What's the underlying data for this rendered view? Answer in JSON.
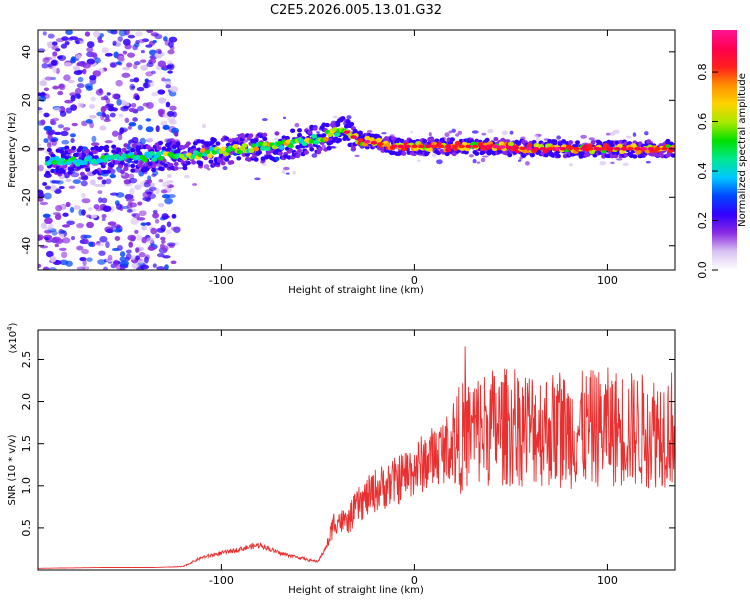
{
  "title": "C2E5.2026.005.13.01.G32",
  "chart_data": [
    {
      "type": "heatmap",
      "name": "spectrogram",
      "xlabel": "Height of straight line (km)",
      "ylabel": "Frequency (Hz)",
      "xlim": [
        -195,
        135
      ],
      "ylim": [
        -50,
        49
      ],
      "xticks": [
        -100,
        0,
        100
      ],
      "xtick_labels": [
        "-100",
        "0",
        "100"
      ],
      "yticks": [
        -40,
        -20,
        0,
        20,
        40
      ],
      "ytick_labels": [
        "-40",
        "-20",
        "0",
        "20",
        "40"
      ],
      "ridge": {
        "x": [
          -190,
          -170,
          -150,
          -130,
          -110,
          -90,
          -70,
          -50,
          -40,
          -37,
          -30,
          -25,
          -10,
          0,
          10,
          20,
          40,
          60,
          80,
          100,
          120,
          135
        ],
        "y": [
          -5,
          -5,
          -4,
          -3,
          -2,
          0,
          1,
          4,
          7,
          8,
          4,
          3,
          1,
          1,
          1,
          1,
          1,
          0,
          0,
          0,
          0,
          0
        ]
      },
      "colorbar": {
        "label": "Normalized spectral amplitude",
        "range": [
          0,
          0.97
        ],
        "ticks": [
          0.0,
          0.2,
          0.4,
          0.6,
          0.8
        ],
        "tick_labels": [
          "0.0",
          "0.2",
          "0.4",
          "0.6",
          "0.8"
        ],
        "colors": [
          "#ffffff",
          "#d9c2f2",
          "#8a2be2",
          "#3300ff",
          "#0044ff",
          "#00c8ff",
          "#00e890",
          "#00e000",
          "#a8e800",
          "#ffd400",
          "#ff9000",
          "#ff1e1e",
          "#ff0050",
          "#ff1493"
        ]
      }
    },
    {
      "type": "line",
      "name": "snr",
      "xlabel": "Height of straight line (km)",
      "ylabel": "SNR (10 * v/v)",
      "y_scale_label": "(x10",
      "y_scale_exp": "4",
      "xlim": [
        -195,
        135
      ],
      "ylim": [
        0,
        2.85
      ],
      "xticks": [
        -100,
        0,
        100
      ],
      "xtick_labels": [
        "-100",
        "0",
        "100"
      ],
      "yticks": [
        0.5,
        1.0,
        1.5,
        2.0,
        2.5
      ],
      "ytick_labels": [
        "0.5",
        "1.0",
        "1.5",
        "2.0",
        "2.5"
      ],
      "color": "#e83030",
      "envelope": {
        "x": [
          -195,
          -160,
          -135,
          -120,
          -110,
          -100,
          -90,
          -80,
          -70,
          -60,
          -55,
          -50,
          -45,
          -42,
          -40,
          -35,
          -30,
          -25,
          -20,
          -10,
          0,
          10,
          20,
          30,
          40,
          60,
          80,
          100,
          120,
          135
        ],
        "y": [
          0.02,
          0.03,
          0.03,
          0.04,
          0.15,
          0.2,
          0.25,
          0.3,
          0.2,
          0.15,
          0.12,
          0.1,
          0.3,
          0.55,
          0.6,
          0.55,
          0.75,
          0.85,
          0.95,
          1.05,
          1.2,
          1.35,
          1.5,
          1.65,
          1.7,
          1.7,
          1.65,
          1.7,
          1.65,
          1.7
        ]
      }
    }
  ]
}
